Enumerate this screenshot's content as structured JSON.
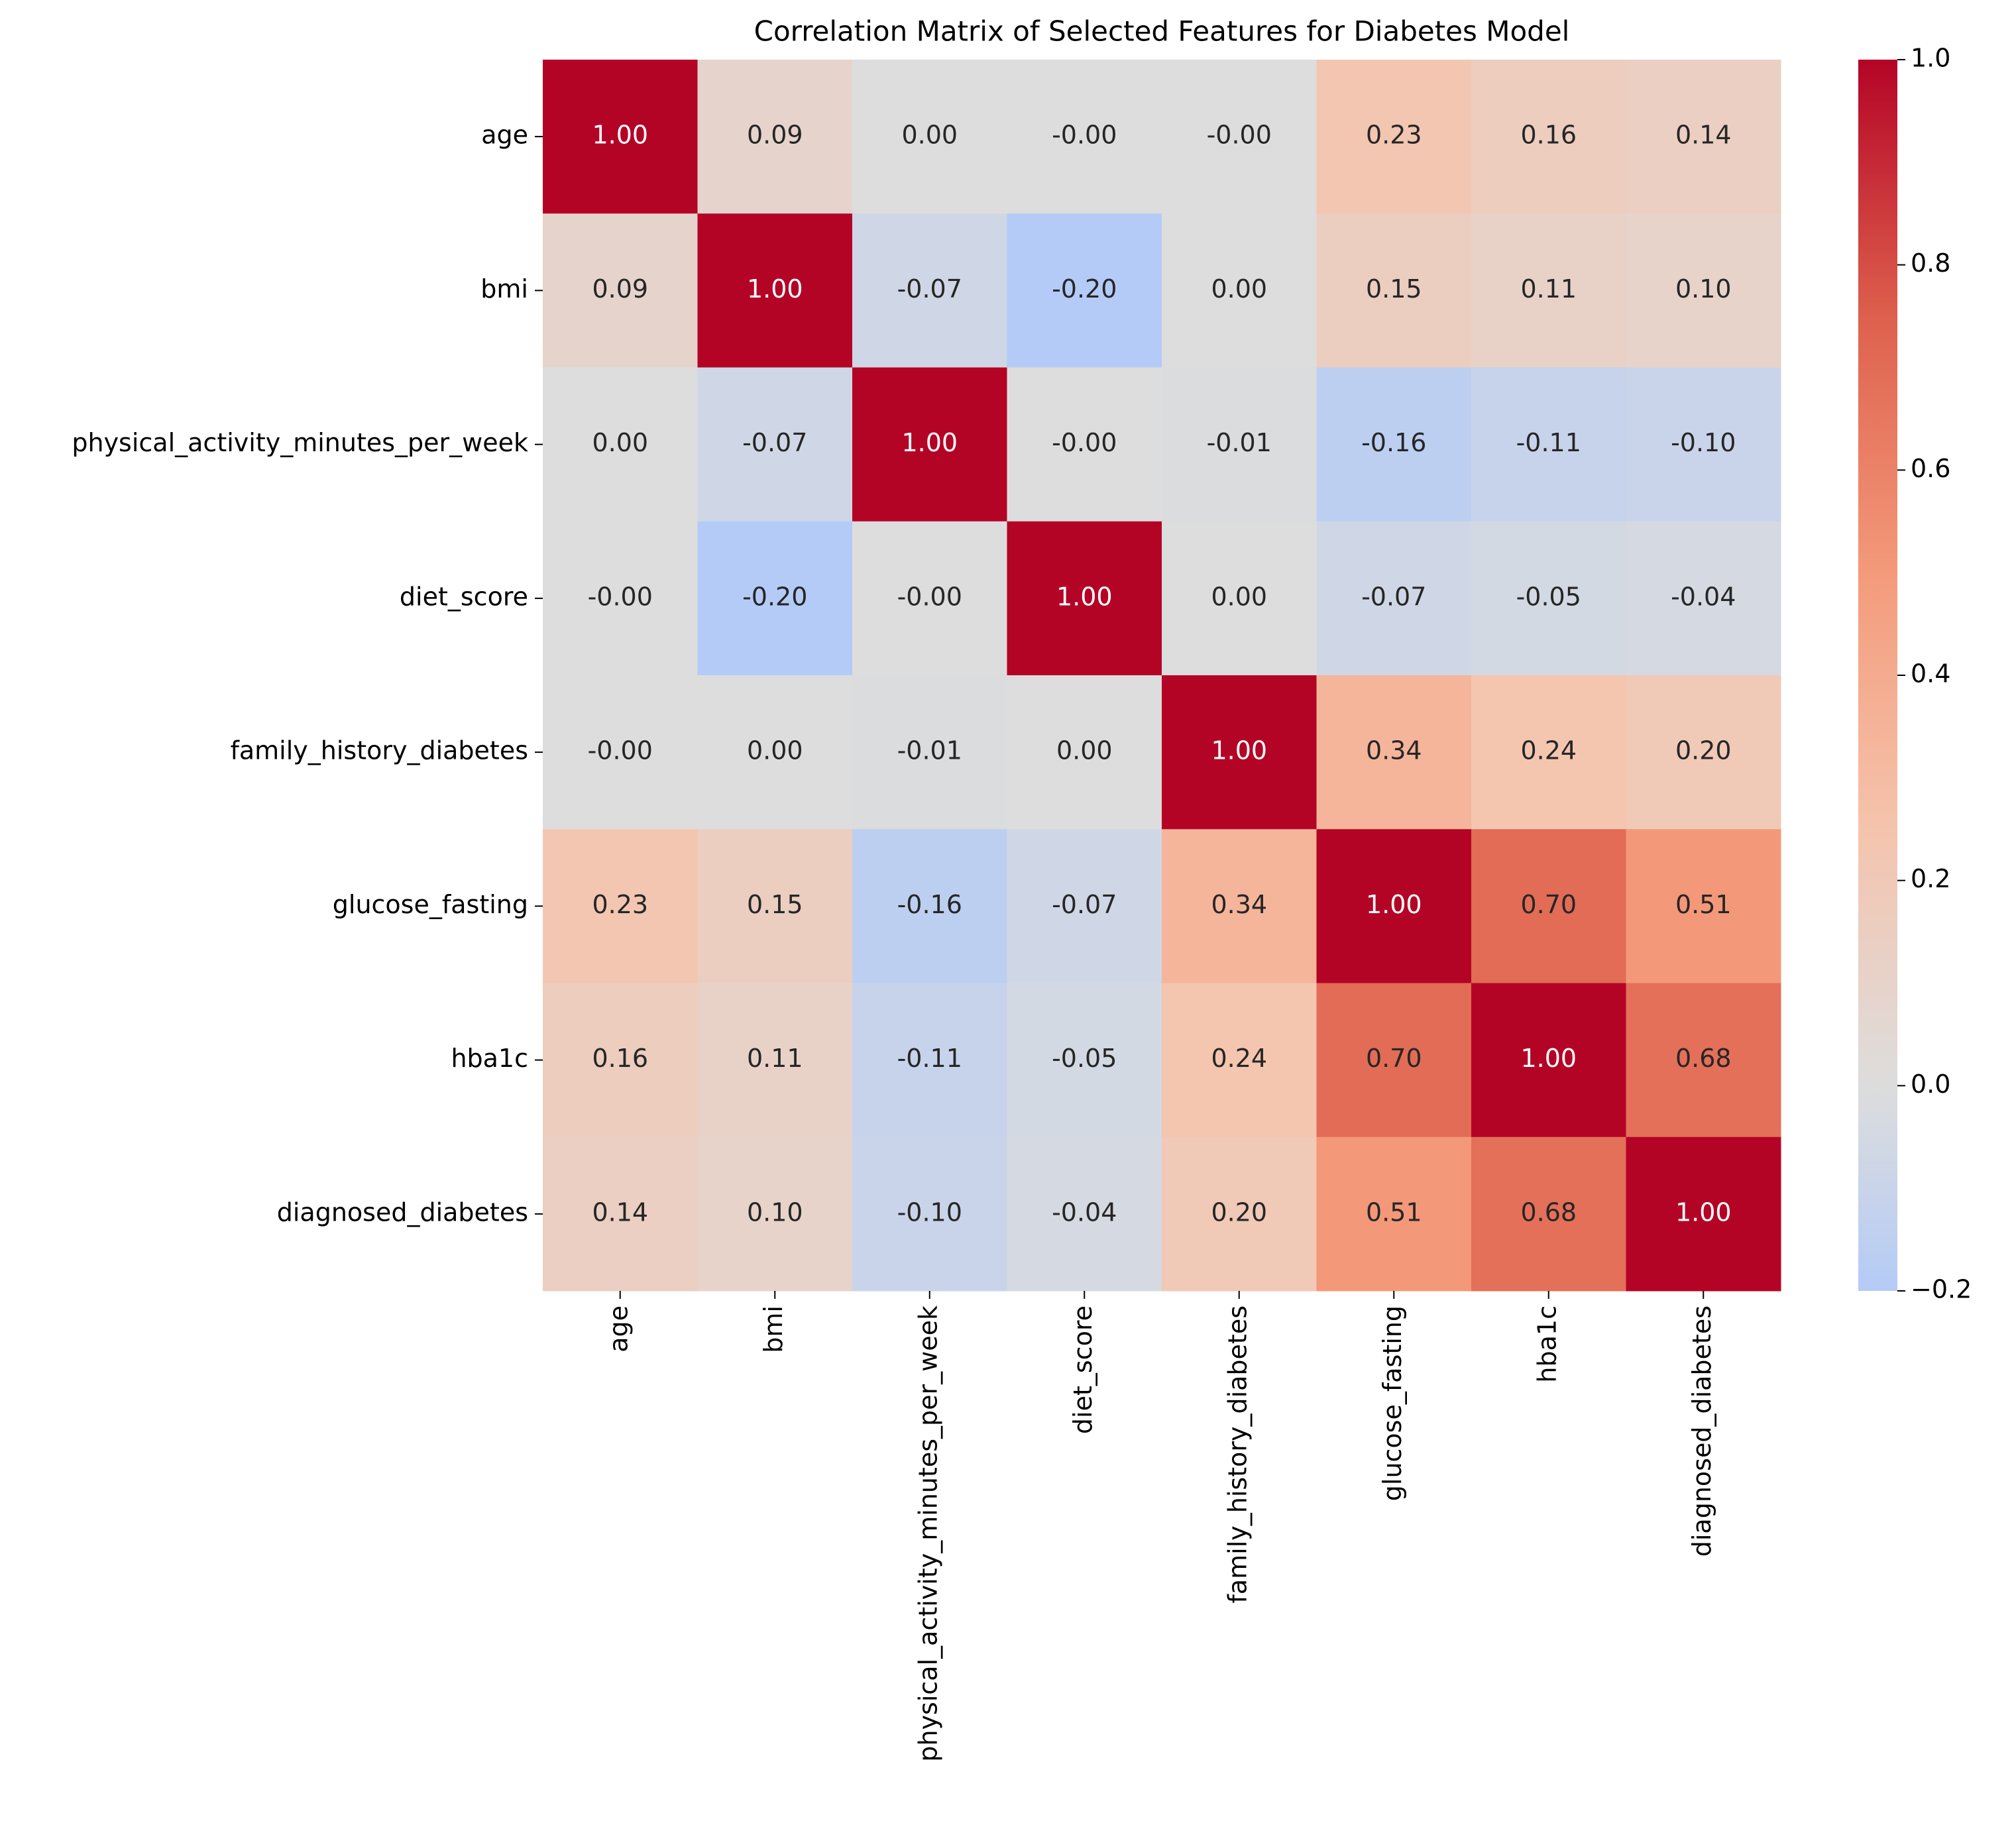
{
  "chart_data": {
    "type": "heatmap",
    "title": "Correlation Matrix of Selected Features for Diabetes Model",
    "x_categories": [
      "age",
      "bmi",
      "physical_activity_minutes_per_week",
      "diet_score",
      "family_history_diabetes",
      "glucose_fasting",
      "hba1c",
      "diagnosed_diabetes"
    ],
    "y_categories": [
      "age",
      "bmi",
      "physical_activity_minutes_per_week",
      "diet_score",
      "family_history_diabetes",
      "glucose_fasting",
      "hba1c",
      "diagnosed_diabetes"
    ],
    "values": [
      [
        1,
        0.09,
        0,
        0,
        0,
        0.23,
        0.16,
        0.14
      ],
      [
        0.09,
        1,
        -0.07,
        -0.2,
        0,
        0.15,
        0.11,
        0.1
      ],
      [
        0,
        -0.07,
        1,
        0,
        -0.01,
        -0.16,
        -0.11,
        -0.1
      ],
      [
        0,
        -0.2,
        0,
        1,
        0,
        -0.07,
        -0.05,
        -0.04
      ],
      [
        0,
        0,
        -0.01,
        0,
        1,
        0.34,
        0.24,
        0.2
      ],
      [
        0.23,
        0.15,
        -0.16,
        -0.07,
        0.34,
        1,
        0.7,
        0.51
      ],
      [
        0.16,
        0.11,
        -0.11,
        -0.05,
        0.24,
        0.7,
        1,
        0.68
      ],
      [
        0.14,
        0.1,
        -0.1,
        -0.04,
        0.2,
        0.51,
        0.68,
        1
      ]
    ],
    "value_labels": [
      [
        "1.00",
        "0.09",
        "0.00",
        "-0.00",
        "-0.00",
        "0.23",
        "0.16",
        "0.14"
      ],
      [
        "0.09",
        "1.00",
        "-0.07",
        "-0.20",
        "0.00",
        "0.15",
        "0.11",
        "0.10"
      ],
      [
        "0.00",
        "-0.07",
        "1.00",
        "-0.00",
        "-0.01",
        "-0.16",
        "-0.11",
        "-0.10"
      ],
      [
        "-0.00",
        "-0.20",
        "-0.00",
        "1.00",
        "0.00",
        "-0.07",
        "-0.05",
        "-0.04"
      ],
      [
        "-0.00",
        "0.00",
        "-0.01",
        "0.00",
        "1.00",
        "0.34",
        "0.24",
        "0.20"
      ],
      [
        "0.23",
        "0.15",
        "-0.16",
        "-0.07",
        "0.34",
        "1.00",
        "0.70",
        "0.51"
      ],
      [
        "0.16",
        "0.11",
        "-0.11",
        "-0.05",
        "0.24",
        "0.70",
        "1.00",
        "0.68"
      ],
      [
        "0.14",
        "0.10",
        "-0.10",
        "-0.04",
        "0.20",
        "0.51",
        "0.68",
        "1.00"
      ]
    ],
    "colormap": "coolwarm",
    "center": 0,
    "clim": [
      -0.2,
      1
    ],
    "cticks": [
      {
        "value": -0.2,
        "label": "−0.2"
      },
      {
        "value": 0,
        "label": "0.0"
      },
      0.2,
      0.4,
      0.6,
      0.8,
      {
        "value": 1,
        "label": "1.0"
      }
    ]
  }
}
